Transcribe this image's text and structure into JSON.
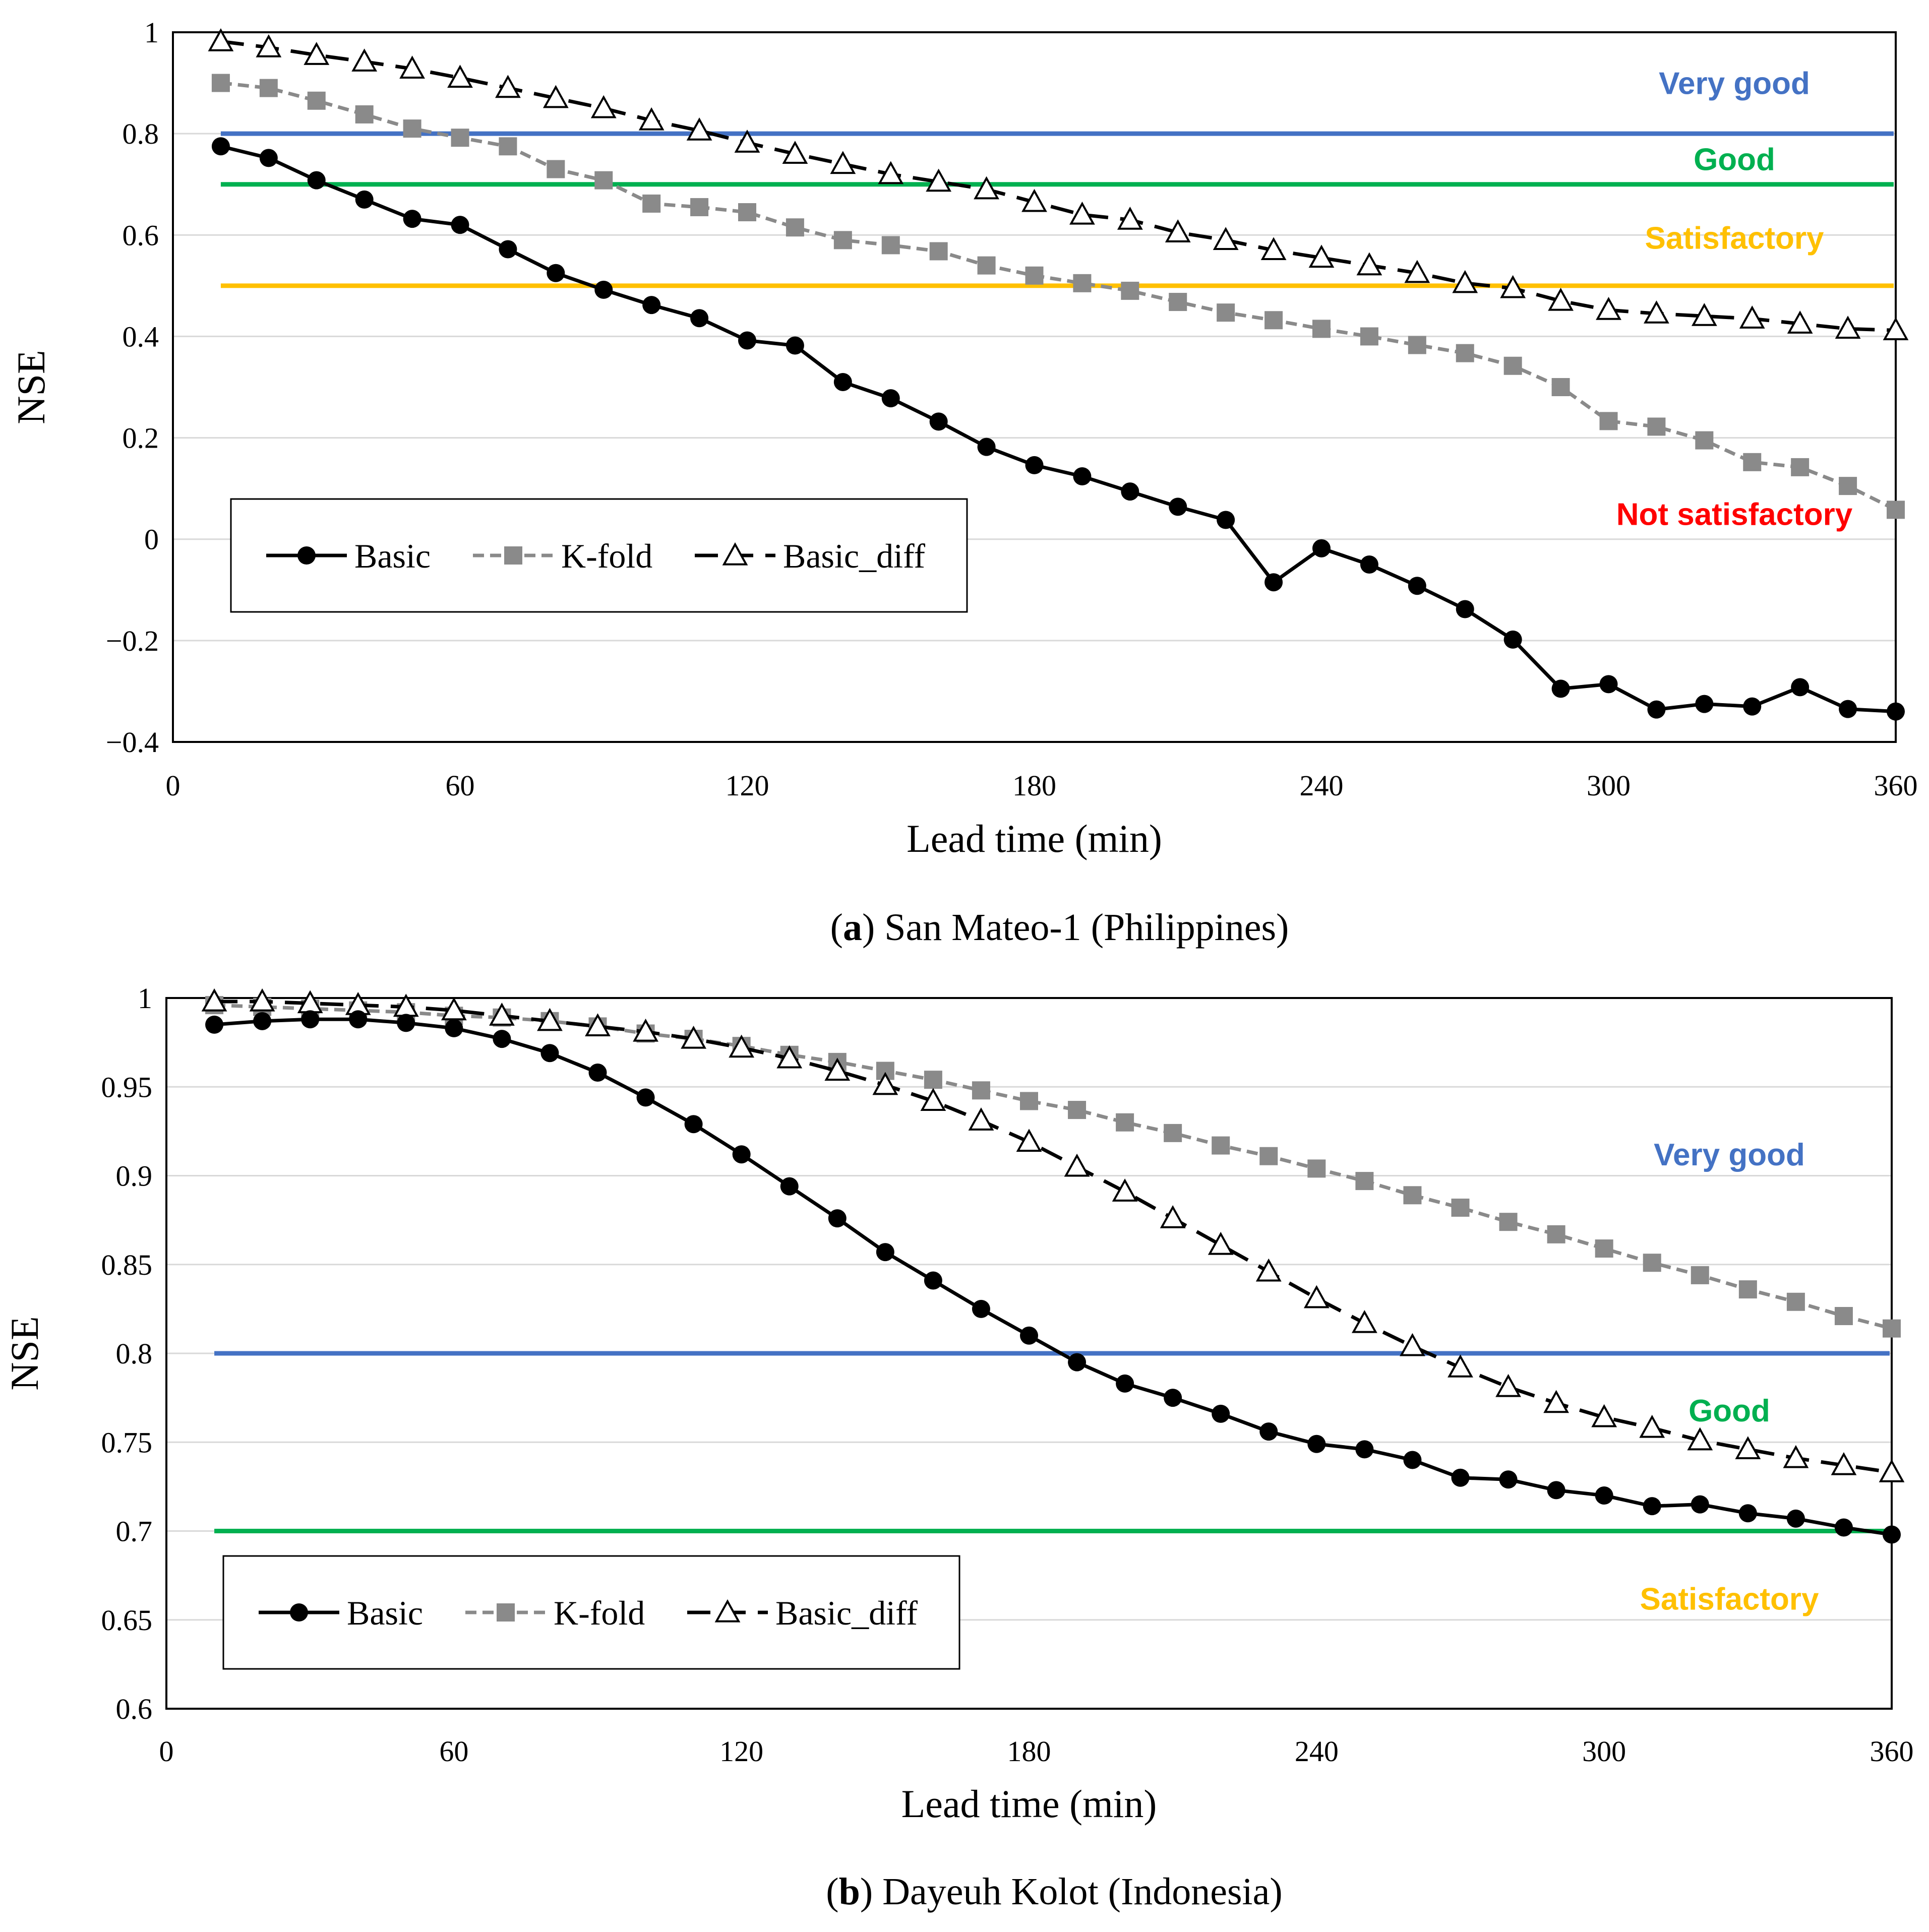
{
  "chart_data": [
    {
      "type": "line",
      "caption_letter": "a",
      "caption_text": " San Mateo-1 (Philippines)",
      "xlabel": "Lead time (min)",
      "ylabel": "NSE",
      "xlim": [
        0,
        360
      ],
      "ylim": [
        -0.4,
        1.0
      ],
      "xticks": [
        0,
        60,
        120,
        180,
        240,
        300,
        360
      ],
      "xtick_labels": [
        "0",
        "60",
        "120",
        "180",
        "240",
        "300",
        "360"
      ],
      "yticks": [
        -0.4,
        -0.2,
        0,
        0.2,
        0.4,
        0.6,
        0.8,
        1.0
      ],
      "ytick_labels": [
        "−0.4",
        "−0.2",
        "0",
        "0.2",
        "0.4",
        "0.6",
        "0.8",
        "1"
      ],
      "x": [
        10,
        20,
        30,
        40,
        50,
        60,
        70,
        80,
        90,
        100,
        110,
        120,
        130,
        140,
        150,
        160,
        170,
        180,
        190,
        200,
        210,
        220,
        230,
        240,
        250,
        260,
        270,
        280,
        290,
        300,
        310,
        320,
        330,
        340,
        350,
        360
      ],
      "series": [
        {
          "name": "Basic",
          "style": "solid-circle",
          "color": "#000000",
          "values": [
            0.775,
            0.752,
            0.708,
            0.67,
            0.632,
            0.62,
            0.572,
            0.525,
            0.492,
            0.462,
            0.436,
            0.392,
            0.382,
            0.31,
            0.278,
            0.232,
            0.182,
            0.146,
            0.124,
            0.094,
            0.064,
            0.038,
            -0.085,
            -0.018,
            -0.05,
            -0.092,
            -0.138,
            -0.198,
            -0.295,
            -0.286,
            -0.336,
            -0.325,
            -0.33,
            -0.292,
            -0.335,
            -0.34
          ]
        },
        {
          "name": "K-fold",
          "style": "dash-square",
          "color": "#8a8a8a",
          "values": [
            0.9,
            0.89,
            0.865,
            0.838,
            0.81,
            0.792,
            0.775,
            0.73,
            0.708,
            0.662,
            0.655,
            0.645,
            0.615,
            0.59,
            0.58,
            0.568,
            0.54,
            0.52,
            0.505,
            0.49,
            0.468,
            0.447,
            0.432,
            0.415,
            0.4,
            0.383,
            0.367,
            0.342,
            0.3,
            0.233,
            0.222,
            0.195,
            0.152,
            0.142,
            0.105,
            0.058
          ]
        },
        {
          "name": "Basic_diff",
          "style": "longdash-triangle",
          "color": "#000000",
          "values": [
            0.982,
            0.97,
            0.955,
            0.942,
            0.928,
            0.91,
            0.89,
            0.87,
            0.85,
            0.826,
            0.806,
            0.782,
            0.76,
            0.74,
            0.72,
            0.705,
            0.69,
            0.665,
            0.64,
            0.63,
            0.605,
            0.59,
            0.57,
            0.555,
            0.54,
            0.525,
            0.505,
            0.495,
            0.47,
            0.452,
            0.445,
            0.44,
            0.435,
            0.425,
            0.415,
            0.412
          ]
        }
      ],
      "thresholds": [
        {
          "value": 0.8,
          "color": "#4472c4"
        },
        {
          "value": 0.7,
          "color": "#00b050"
        },
        {
          "value": 0.5,
          "color": "#ffc000"
        }
      ],
      "bands": [
        {
          "label": "Very good",
          "color": "#4472c4",
          "at": 0.9
        },
        {
          "label": "Good",
          "color": "#00b050",
          "at": 0.75
        },
        {
          "label": "Satisfactory",
          "color": "#ffc000",
          "at": 0.595
        },
        {
          "label": "Not satisfactory",
          "color": "#ff0000",
          "at": 0.05
        }
      ],
      "legend": [
        "Basic",
        "K-fold",
        "Basic_diff"
      ],
      "legend_position": "bottom-left"
    },
    {
      "type": "line",
      "caption_letter": "b",
      "caption_text": " Dayeuh Kolot (Indonesia)",
      "xlabel": "Lead time (min)",
      "ylabel": "NSE",
      "xlim": [
        0,
        360
      ],
      "ylim": [
        0.6,
        1.0
      ],
      "xticks": [
        0,
        60,
        120,
        180,
        240,
        300,
        360
      ],
      "xtick_labels": [
        "0",
        "60",
        "120",
        "180",
        "240",
        "300",
        "360"
      ],
      "yticks": [
        0.6,
        0.65,
        0.7,
        0.75,
        0.8,
        0.85,
        0.9,
        0.95,
        1.0
      ],
      "ytick_labels": [
        "0.6",
        "0.65",
        "0.7",
        "0.75",
        "0.8",
        "0.85",
        "0.9",
        "0.95",
        "1"
      ],
      "x": [
        10,
        20,
        30,
        40,
        50,
        60,
        70,
        80,
        90,
        100,
        110,
        120,
        130,
        140,
        150,
        160,
        170,
        180,
        190,
        200,
        210,
        220,
        230,
        240,
        250,
        260,
        270,
        280,
        290,
        300,
        310,
        320,
        330,
        340,
        350,
        360
      ],
      "series": [
        {
          "name": "Basic",
          "style": "solid-circle",
          "color": "#000000",
          "values": [
            0.985,
            0.987,
            0.988,
            0.988,
            0.986,
            0.983,
            0.977,
            0.969,
            0.958,
            0.944,
            0.929,
            0.912,
            0.894,
            0.876,
            0.857,
            0.841,
            0.825,
            0.81,
            0.795,
            0.783,
            0.775,
            0.766,
            0.756,
            0.749,
            0.746,
            0.74,
            0.73,
            0.729,
            0.723,
            0.72,
            0.714,
            0.715,
            0.71,
            0.707,
            0.702,
            0.698
          ]
        },
        {
          "name": "K-fold",
          "style": "dash-square",
          "color": "#8a8a8a",
          "values": [
            0.996,
            0.995,
            0.994,
            0.993,
            0.992,
            0.99,
            0.989,
            0.987,
            0.984,
            0.98,
            0.977,
            0.973,
            0.968,
            0.964,
            0.959,
            0.954,
            0.948,
            0.942,
            0.937,
            0.93,
            0.924,
            0.917,
            0.911,
            0.904,
            0.897,
            0.889,
            0.882,
            0.874,
            0.867,
            0.859,
            0.851,
            0.844,
            0.836,
            0.829,
            0.821,
            0.814
          ]
        },
        {
          "name": "Basic_diff",
          "style": "longdash-triangle",
          "color": "#000000",
          "values": [
            0.998,
            0.998,
            0.997,
            0.996,
            0.995,
            0.993,
            0.99,
            0.987,
            0.984,
            0.981,
            0.977,
            0.972,
            0.966,
            0.959,
            0.951,
            0.942,
            0.931,
            0.919,
            0.905,
            0.891,
            0.876,
            0.861,
            0.846,
            0.831,
            0.817,
            0.804,
            0.792,
            0.781,
            0.772,
            0.764,
            0.758,
            0.751,
            0.746,
            0.741,
            0.737,
            0.733
          ]
        }
      ],
      "thresholds": [
        {
          "value": 0.8,
          "color": "#4472c4"
        },
        {
          "value": 0.7,
          "color": "#00b050"
        }
      ],
      "bands": [
        {
          "label": "Very good",
          "color": "#4472c4",
          "at": 0.912
        },
        {
          "label": "Good",
          "color": "#00b050",
          "at": 0.768
        },
        {
          "label": "Satisfactory",
          "color": "#ffc000",
          "at": 0.662
        }
      ],
      "legend": [
        "Basic",
        "K-fold",
        "Basic_diff"
      ],
      "legend_position": "bottom-left"
    }
  ]
}
